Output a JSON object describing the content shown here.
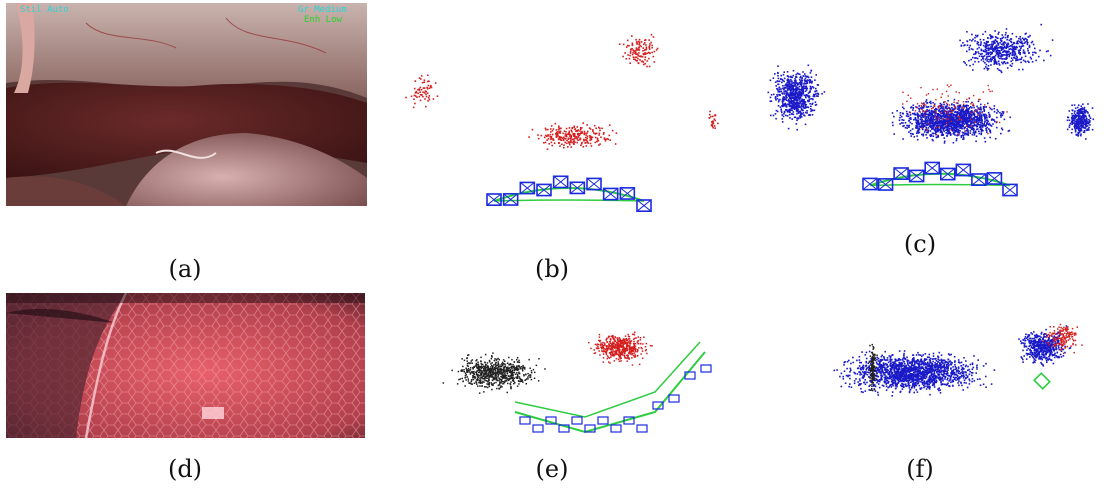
{
  "figure": {
    "panels": [
      {
        "id": "a",
        "caption": "(a)",
        "kind": "endoscopic-photo-abdomen"
      },
      {
        "id": "b",
        "caption": "(b)",
        "kind": "sparse-point-cloud-with-cameras"
      },
      {
        "id": "c",
        "caption": "(c)",
        "kind": "dense-point-cloud-with-cameras"
      },
      {
        "id": "d",
        "caption": "(d)",
        "kind": "endoscopic-photo-liver-surface"
      },
      {
        "id": "e",
        "caption": "(e)",
        "kind": "point-cloud-with-camera-trajectory"
      },
      {
        "id": "f",
        "caption": "(f)",
        "kind": "dense-point-cloud"
      }
    ],
    "overlay_text": {
      "top_left": "Stil Auto",
      "top_right_1": "Gr Medium",
      "top_right_2": "Enh Low"
    },
    "colors": {
      "sparse_points": "#d42020",
      "dense_points": "#1a1ac8",
      "black_points": "#222222",
      "camera_frames": "#1a2be0",
      "trajectory": "#2ecc40"
    }
  }
}
